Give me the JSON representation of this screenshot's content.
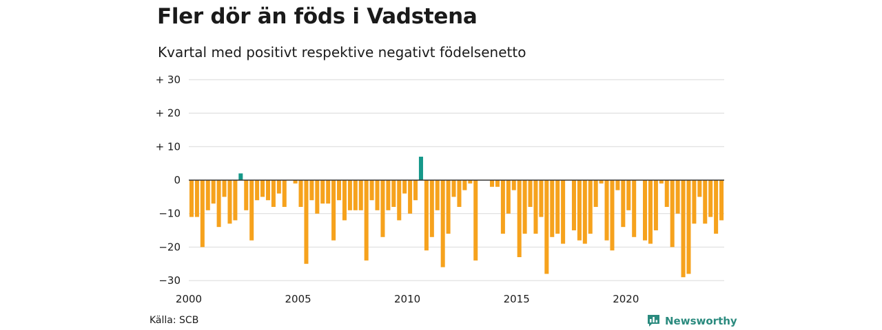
{
  "title": "Fler dör än föds i Vadstena",
  "subtitle": "Kvartal med positivt respektive negativt födelsenetto",
  "source": "Källa: SCB",
  "brand": "Newsworthy",
  "colors": {
    "positive": "#16988a",
    "negative": "#f6a21d",
    "grid": "#d9d9d9",
    "brand": "#2a8a7e"
  },
  "chart_data": {
    "type": "bar",
    "title": "Fler dör än föds i Vadstena",
    "subtitle": "Kvartal med positivt respektive negativt födelsenetto",
    "x_start": "2000 Q1",
    "x_ticks": [
      "2000",
      "2005",
      "2010",
      "2015",
      "2020"
    ],
    "y_ticks": [
      "+ 30",
      "+ 20",
      "+ 10",
      "0",
      "−10",
      "−20",
      "−30"
    ],
    "ylim": [
      -30,
      30
    ],
    "grid": true,
    "values": [
      -11,
      -11,
      -20,
      -9,
      -7,
      -14,
      -5,
      -13,
      -12,
      2,
      -9,
      -18,
      -6,
      -5,
      -6,
      -8,
      -4,
      -8,
      0,
      -1,
      -8,
      -25,
      -6,
      -10,
      -7,
      -7,
      -18,
      -6,
      -12,
      -9,
      -9,
      -9,
      -24,
      -6,
      -9,
      -17,
      -9,
      -8,
      -12,
      -4,
      -10,
      -6,
      7,
      -21,
      -17,
      -9,
      -26,
      -16,
      -5,
      -8,
      -3,
      -1,
      -24,
      0,
      0,
      -2,
      -2,
      -16,
      -10,
      -3,
      -23,
      -16,
      -8,
      -16,
      -11,
      -28,
      -17,
      -16,
      -19,
      0,
      -15,
      -18,
      -19,
      -16,
      -8,
      -1,
      -18,
      -21,
      -3,
      -14,
      -9,
      -17,
      0,
      -18,
      -19,
      -15,
      -1,
      -8,
      -20,
      -10,
      -29,
      -28,
      -13,
      -5,
      -13,
      -11,
      -16,
      -12
    ]
  }
}
